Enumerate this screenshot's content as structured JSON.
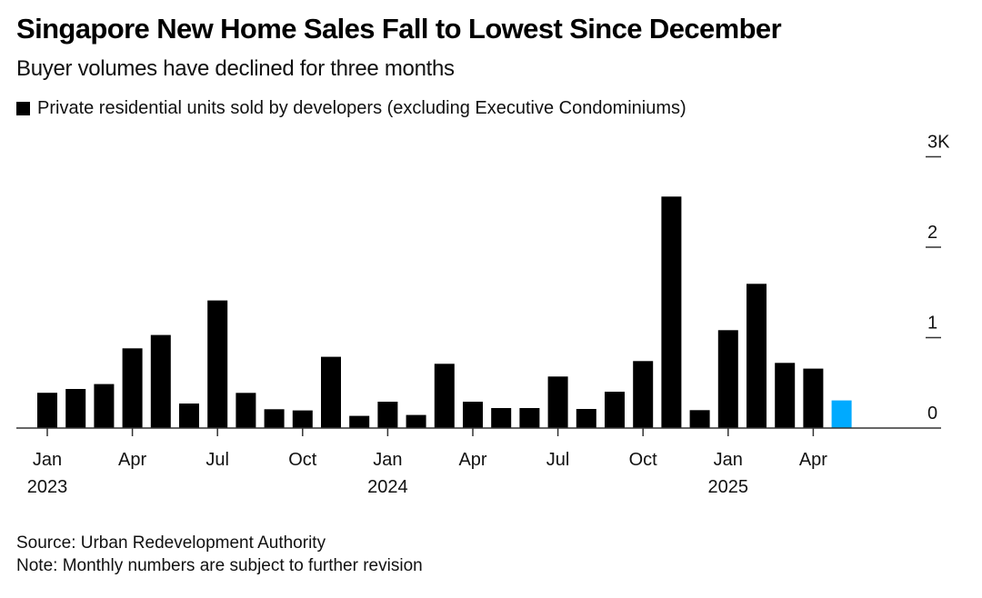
{
  "header": {
    "title": "Singapore New Home Sales Fall to Lowest Since December",
    "subtitle": "Buyer volumes have declined for three months",
    "legend_label": "Private residential units sold by developers (excluding Executive Condominiums)"
  },
  "footer": {
    "source": "Source: Urban Redevelopment Authority",
    "note": "Note: Monthly numbers are subject to further revision"
  },
  "colors": {
    "bar": "#000000",
    "highlight": "#00aaff"
  },
  "chart_data": {
    "type": "bar",
    "title": "Singapore New Home Sales Fall to Lowest Since December",
    "subtitle": "Buyer volumes have declined for three months",
    "xlabel": "",
    "ylabel": "",
    "ylim": [
      0,
      3000
    ],
    "y_ticks": [
      {
        "value": 0,
        "label": "0"
      },
      {
        "value": 1000,
        "label": "1"
      },
      {
        "value": 2000,
        "label": "2"
      },
      {
        "value": 3000,
        "label": "3K"
      }
    ],
    "y_axis_side": "right",
    "grid": false,
    "legend": {
      "position": "top-left",
      "entries": [
        "Private residential units sold by developers (excluding Executive Condominiums)"
      ]
    },
    "categories": [
      "Jan 2023",
      "Feb 2023",
      "Mar 2023",
      "Apr 2023",
      "May 2023",
      "Jun 2023",
      "Jul 2023",
      "Aug 2023",
      "Sep 2023",
      "Oct 2023",
      "Nov 2023",
      "Dec 2023",
      "Jan 2024",
      "Feb 2024",
      "Mar 2024",
      "Apr 2024",
      "May 2024",
      "Jun 2024",
      "Jul 2024",
      "Aug 2024",
      "Sep 2024",
      "Oct 2024",
      "Nov 2024",
      "Dec 2024",
      "Jan 2025",
      "Feb 2025",
      "Mar 2025",
      "Apr 2025",
      "May 2025"
    ],
    "series": [
      {
        "name": "Private residential units sold by developers (excluding Executive Condominiums)",
        "values": [
          390,
          432,
          486,
          881,
          1029,
          271,
          1411,
          389,
          208,
          195,
          788,
          135,
          291,
          145,
          711,
          291,
          221,
          221,
          570,
          211,
          402,
          741,
          2560,
          198,
          1082,
          1595,
          721,
          657,
          306
        ],
        "highlight_index": 28
      }
    ],
    "x_ticks": [
      {
        "index": 0,
        "label": "Jan",
        "year": "2023"
      },
      {
        "index": 3,
        "label": "Apr",
        "year": ""
      },
      {
        "index": 6,
        "label": "Jul",
        "year": ""
      },
      {
        "index": 9,
        "label": "Oct",
        "year": ""
      },
      {
        "index": 12,
        "label": "Jan",
        "year": "2024"
      },
      {
        "index": 15,
        "label": "Apr",
        "year": ""
      },
      {
        "index": 18,
        "label": "Jul",
        "year": ""
      },
      {
        "index": 21,
        "label": "Oct",
        "year": ""
      },
      {
        "index": 24,
        "label": "Jan",
        "year": "2025"
      },
      {
        "index": 27,
        "label": "Apr",
        "year": ""
      }
    ],
    "source": "Source: Urban Redevelopment Authority",
    "note": "Note: Monthly numbers are subject to further revision"
  }
}
